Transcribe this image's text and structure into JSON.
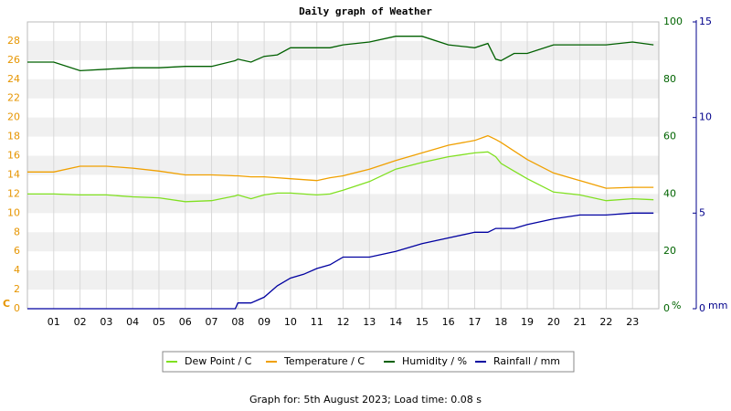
{
  "chart_data": {
    "type": "line",
    "title": "Daily graph of Weather",
    "footer": "Graph for: 5th August 2023; Load time: 0.08 s",
    "ylabel": "C",
    "y2label": "%",
    "y3label": "mm",
    "x": [
      0,
      1,
      2,
      3,
      4,
      5,
      6,
      7,
      7.9,
      8,
      8.5,
      9,
      9.5,
      10,
      10.5,
      11,
      11.5,
      12,
      13,
      14,
      15,
      16,
      17,
      17.5,
      17.8,
      18,
      18.5,
      19,
      20,
      21,
      22,
      23,
      23.8
    ],
    "xlim": [
      0,
      24
    ],
    "xticks": [
      {
        "value": 1,
        "label": "01"
      },
      {
        "value": 2,
        "label": "02"
      },
      {
        "value": 3,
        "label": "03"
      },
      {
        "value": 4,
        "label": "04"
      },
      {
        "value": 5,
        "label": "05"
      },
      {
        "value": 6,
        "label": "06"
      },
      {
        "value": 7,
        "label": "07"
      },
      {
        "value": 8,
        "label": "08"
      },
      {
        "value": 9,
        "label": "09"
      },
      10,
      11,
      12,
      13,
      14,
      15,
      16,
      17,
      18,
      19,
      20,
      21,
      22,
      23
    ],
    "ylim": [
      0,
      30
    ],
    "yticks": [
      0,
      2,
      4,
      6,
      8,
      10,
      12,
      14,
      16,
      18,
      20,
      22,
      24,
      26,
      28
    ],
    "y2lim": [
      0,
      100
    ],
    "y2ticks": [
      0,
      20,
      40,
      60,
      80,
      100
    ],
    "y3lim": [
      0,
      15
    ],
    "y3ticks": [
      0,
      5,
      10,
      15
    ],
    "grid": true,
    "axis_colors": {
      "y": "#e69500",
      "y2": "#006400",
      "y3": "#00008b"
    },
    "series": [
      {
        "name": "Dew Point / C",
        "color": "#80e020",
        "axis": "y",
        "values": [
          12.0,
          12.0,
          11.9,
          11.9,
          11.7,
          11.6,
          11.2,
          11.3,
          11.8,
          11.9,
          11.5,
          11.9,
          12.1,
          12.1,
          12.0,
          11.9,
          12.0,
          12.4,
          13.3,
          14.6,
          15.3,
          15.9,
          16.3,
          16.4,
          15.9,
          15.2,
          14.4,
          13.6,
          12.2,
          11.9,
          11.3,
          11.5,
          11.4
        ]
      },
      {
        "name": "Temperature / C",
        "color": "#f0a000",
        "axis": "y",
        "values": [
          14.3,
          14.3,
          14.9,
          14.9,
          14.7,
          14.4,
          14.0,
          14.0,
          13.9,
          13.9,
          13.8,
          13.8,
          13.7,
          13.6,
          13.5,
          13.4,
          13.7,
          13.9,
          14.6,
          15.5,
          16.3,
          17.1,
          17.6,
          18.1,
          17.7,
          17.4,
          16.5,
          15.6,
          14.2,
          13.4,
          12.6,
          12.7,
          12.7
        ]
      },
      {
        "name": "Humidity / %",
        "color": "#006000",
        "axis": "y2",
        "values": [
          86,
          86,
          83,
          83.5,
          84,
          84,
          84.5,
          84.5,
          86.5,
          87,
          86,
          88,
          88.5,
          91,
          91,
          91,
          91,
          92,
          93,
          95,
          95,
          92,
          91,
          92.5,
          87,
          86.5,
          89,
          89,
          92,
          92,
          92,
          93,
          92
        ]
      },
      {
        "name": "Rainfall / mm",
        "color": "#0000a0",
        "axis": "y3",
        "values": [
          0,
          0,
          0,
          0,
          0,
          0,
          0,
          0,
          0,
          0.3,
          0.3,
          0.6,
          1.2,
          1.6,
          1.8,
          2.1,
          2.3,
          2.7,
          2.7,
          3.0,
          3.4,
          3.7,
          4.0,
          4.0,
          4.2,
          4.2,
          4.2,
          4.4,
          4.7,
          4.9,
          4.9,
          5.0,
          5.0
        ]
      }
    ]
  }
}
